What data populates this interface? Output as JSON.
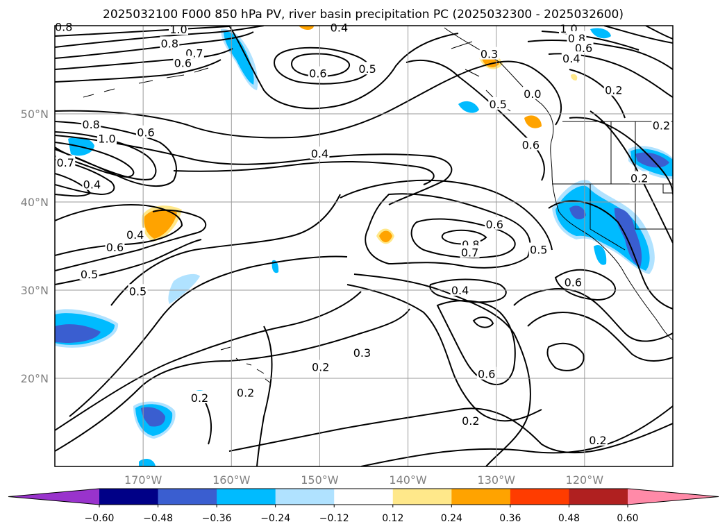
{
  "title": "2025032100 F000 850 hPa PV, river basin precipitation PC (2025032300 - 2025032600)",
  "map": {
    "lon_range": [
      -180,
      -110
    ],
    "lat_range": [
      10,
      60
    ],
    "lon_ticks": [
      {
        "lon": -170,
        "label": "170°W"
      },
      {
        "lon": -160,
        "label": "160°W"
      },
      {
        "lon": -150,
        "label": "150°W"
      },
      {
        "lon": -140,
        "label": "140°W"
      },
      {
        "lon": -130,
        "label": "130°W"
      },
      {
        "lon": -120,
        "label": "120°W"
      }
    ],
    "lat_ticks": [
      {
        "lat": 20,
        "label": "20°N"
      },
      {
        "lat": 30,
        "label": "30°N"
      },
      {
        "lat": 40,
        "label": "40°N"
      },
      {
        "lat": 50,
        "label": "50°N"
      }
    ],
    "gridlines": true,
    "contour_labels": [
      {
        "lon": -179.0,
        "lat": 59.9,
        "text": "0.8"
      },
      {
        "lon": -166.0,
        "lat": 59.6,
        "text": "1.0"
      },
      {
        "lon": -167.0,
        "lat": 58.0,
        "text": "0.8"
      },
      {
        "lon": -164.2,
        "lat": 56.9,
        "text": "0.7"
      },
      {
        "lon": -165.5,
        "lat": 55.8,
        "text": "0.6"
      },
      {
        "lon": -147.8,
        "lat": 59.8,
        "text": "0.4"
      },
      {
        "lon": -150.2,
        "lat": 54.6,
        "text": "0.6"
      },
      {
        "lon": -144.6,
        "lat": 55.1,
        "text": "0.5"
      },
      {
        "lon": -130.8,
        "lat": 56.8,
        "text": "0.3"
      },
      {
        "lon": -121.8,
        "lat": 59.7,
        "text": "1.0"
      },
      {
        "lon": -120.9,
        "lat": 58.6,
        "text": "0.8"
      },
      {
        "lon": -120.1,
        "lat": 57.5,
        "text": "0.6"
      },
      {
        "lon": -121.5,
        "lat": 56.3,
        "text": "0.4"
      },
      {
        "lon": -116.7,
        "lat": 52.7,
        "text": "0.2"
      },
      {
        "lon": -111.3,
        "lat": 48.7,
        "text": "0.2"
      },
      {
        "lon": -129.8,
        "lat": 51.1,
        "text": "0.5"
      },
      {
        "lon": -125.9,
        "lat": 52.3,
        "text": "0.0"
      },
      {
        "lon": -175.9,
        "lat": 48.8,
        "text": "0.8"
      },
      {
        "lon": -174.1,
        "lat": 47.2,
        "text": "1.0"
      },
      {
        "lon": -169.7,
        "lat": 47.9,
        "text": "0.6"
      },
      {
        "lon": -178.8,
        "lat": 44.5,
        "text": "0.7"
      },
      {
        "lon": -175.8,
        "lat": 42.0,
        "text": "0.4"
      },
      {
        "lon": -150.0,
        "lat": 45.5,
        "text": "0.4"
      },
      {
        "lon": -126.1,
        "lat": 46.5,
        "text": "0.6"
      },
      {
        "lon": -113.8,
        "lat": 42.7,
        "text": "0.2"
      },
      {
        "lon": -170.9,
        "lat": 36.3,
        "text": "0.4"
      },
      {
        "lon": -173.2,
        "lat": 34.9,
        "text": "0.6"
      },
      {
        "lon": -176.1,
        "lat": 31.8,
        "text": "0.5"
      },
      {
        "lon": -170.6,
        "lat": 29.9,
        "text": "0.5"
      },
      {
        "lon": -130.2,
        "lat": 37.5,
        "text": "0.6"
      },
      {
        "lon": -132.9,
        "lat": 35.2,
        "text": "0.8"
      },
      {
        "lon": -133.0,
        "lat": 34.3,
        "text": "0.7"
      },
      {
        "lon": -134.1,
        "lat": 30.0,
        "text": "0.4"
      },
      {
        "lon": -125.2,
        "lat": 34.6,
        "text": "0.5"
      },
      {
        "lon": -121.3,
        "lat": 30.9,
        "text": "0.6"
      },
      {
        "lon": -145.2,
        "lat": 22.9,
        "text": "0.3"
      },
      {
        "lon": -149.9,
        "lat": 21.3,
        "text": "0.2"
      },
      {
        "lon": -131.1,
        "lat": 20.5,
        "text": "0.6"
      },
      {
        "lon": -158.4,
        "lat": 18.4,
        "text": "0.2"
      },
      {
        "lon": -163.6,
        "lat": 17.8,
        "text": "0.2"
      },
      {
        "lon": -132.9,
        "lat": 15.2,
        "text": "0.2"
      },
      {
        "lon": -118.5,
        "lat": 13.0,
        "text": "0.2"
      }
    ]
  },
  "colorbar": {
    "levels": [
      -0.6,
      -0.48,
      -0.36,
      -0.24,
      -0.12,
      0.12,
      0.24,
      0.36,
      0.48,
      0.6
    ],
    "tick_labels": [
      "−0.60",
      "−0.48",
      "−0.36",
      "−0.24",
      "−0.12",
      "0.12",
      "0.24",
      "0.36",
      "0.48",
      "0.60"
    ],
    "colors": [
      "#000087",
      "#3a5ed0",
      "#00bbff",
      "#b0e2ff",
      "#ffffff",
      "#ffe88a",
      "#ffa300",
      "#ff3c00",
      "#b02020"
    ],
    "under_color": "#9933cc",
    "over_color": "#ff8aa8",
    "extend": "both"
  }
}
